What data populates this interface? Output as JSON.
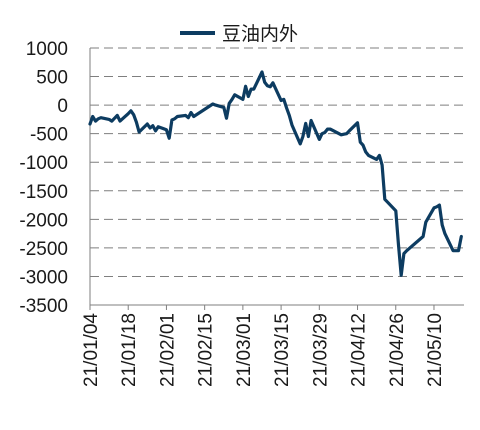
{
  "chart_data": {
    "type": "line",
    "title": "",
    "xlabel": "",
    "ylabel": "",
    "ylim": [
      -3500,
      1000
    ],
    "yticks": [
      1000,
      500,
      0,
      -500,
      -1000,
      -1500,
      -2000,
      -2500,
      -3000,
      -3500
    ],
    "x_tick_labels": [
      "21/01/04",
      "21/01/18",
      "21/02/01",
      "21/02/15",
      "21/03/01",
      "21/03/15",
      "21/03/29",
      "21/04/12",
      "21/04/26",
      "21/05/10"
    ],
    "xlim": [
      "2021-01-04",
      "2021-05-21"
    ],
    "grid": "horizontal dashed",
    "legend_position": "top-center",
    "series": [
      {
        "name": "豆油内外",
        "color": "#0d3c61",
        "points": [
          [
            "2021-01-04",
            -330
          ],
          [
            "2021-01-05",
            -200
          ],
          [
            "2021-01-06",
            -280
          ],
          [
            "2021-01-07",
            -240
          ],
          [
            "2021-01-08",
            -220
          ],
          [
            "2021-01-11",
            -250
          ],
          [
            "2021-01-12",
            -280
          ],
          [
            "2021-01-13",
            -230
          ],
          [
            "2021-01-14",
            -180
          ],
          [
            "2021-01-15",
            -280
          ],
          [
            "2021-01-18",
            -150
          ],
          [
            "2021-01-19",
            -100
          ],
          [
            "2021-01-20",
            -170
          ],
          [
            "2021-01-21",
            -300
          ],
          [
            "2021-01-22",
            -470
          ],
          [
            "2021-01-25",
            -330
          ],
          [
            "2021-01-26",
            -400
          ],
          [
            "2021-01-27",
            -360
          ],
          [
            "2021-01-28",
            -450
          ],
          [
            "2021-01-29",
            -380
          ],
          [
            "2021-02-01",
            -430
          ],
          [
            "2021-02-02",
            -580
          ],
          [
            "2021-02-03",
            -260
          ],
          [
            "2021-02-04",
            -240
          ],
          [
            "2021-02-05",
            -200
          ],
          [
            "2021-02-08",
            -180
          ],
          [
            "2021-02-09",
            -220
          ],
          [
            "2021-02-10",
            -130
          ],
          [
            "2021-02-11",
            -200
          ],
          [
            "2021-02-18",
            20
          ],
          [
            "2021-02-19",
            0
          ],
          [
            "2021-02-22",
            -40
          ],
          [
            "2021-02-23",
            -230
          ],
          [
            "2021-02-24",
            30
          ],
          [
            "2021-02-25",
            100
          ],
          [
            "2021-02-26",
            180
          ],
          [
            "2021-03-01",
            100
          ],
          [
            "2021-03-02",
            330
          ],
          [
            "2021-03-03",
            150
          ],
          [
            "2021-03-04",
            280
          ],
          [
            "2021-03-05",
            280
          ],
          [
            "2021-03-08",
            580
          ],
          [
            "2021-03-09",
            400
          ],
          [
            "2021-03-10",
            340
          ],
          [
            "2021-03-11",
            320
          ],
          [
            "2021-03-12",
            390
          ],
          [
            "2021-03-15",
            80
          ],
          [
            "2021-03-16",
            100
          ],
          [
            "2021-03-17",
            -50
          ],
          [
            "2021-03-18",
            -180
          ],
          [
            "2021-03-19",
            -350
          ],
          [
            "2021-03-22",
            -680
          ],
          [
            "2021-03-23",
            -550
          ],
          [
            "2021-03-24",
            -320
          ],
          [
            "2021-03-25",
            -550
          ],
          [
            "2021-03-26",
            -270
          ],
          [
            "2021-03-29",
            -600
          ],
          [
            "2021-03-30",
            -500
          ],
          [
            "2021-03-31",
            -480
          ],
          [
            "2021-04-01",
            -420
          ],
          [
            "2021-04-02",
            -420
          ],
          [
            "2021-04-06",
            -520
          ],
          [
            "2021-04-07",
            -510
          ],
          [
            "2021-04-08",
            -500
          ],
          [
            "2021-04-09",
            -450
          ],
          [
            "2021-04-12",
            -310
          ],
          [
            "2021-04-13",
            -650
          ],
          [
            "2021-04-14",
            -700
          ],
          [
            "2021-04-15",
            -820
          ],
          [
            "2021-04-16",
            -880
          ],
          [
            "2021-04-19",
            -950
          ],
          [
            "2021-04-20",
            -880
          ],
          [
            "2021-04-21",
            -1050
          ],
          [
            "2021-04-22",
            -1650
          ],
          [
            "2021-04-23",
            -1700
          ],
          [
            "2021-04-26",
            -1850
          ],
          [
            "2021-04-27",
            -2450
          ],
          [
            "2021-04-28",
            -2980
          ],
          [
            "2021-04-29",
            -2600
          ],
          [
            "2021-04-30",
            -2550
          ],
          [
            "2021-05-06",
            -2300
          ],
          [
            "2021-05-07",
            -2050
          ],
          [
            "2021-05-10",
            -1800
          ],
          [
            "2021-05-11",
            -1780
          ],
          [
            "2021-05-12",
            -1750
          ],
          [
            "2021-05-13",
            -2100
          ],
          [
            "2021-05-14",
            -2250
          ],
          [
            "2021-05-17",
            -2550
          ],
          [
            "2021-05-18",
            -2550
          ],
          [
            "2021-05-19",
            -2550
          ],
          [
            "2021-05-20",
            -2300
          ]
        ]
      }
    ]
  }
}
